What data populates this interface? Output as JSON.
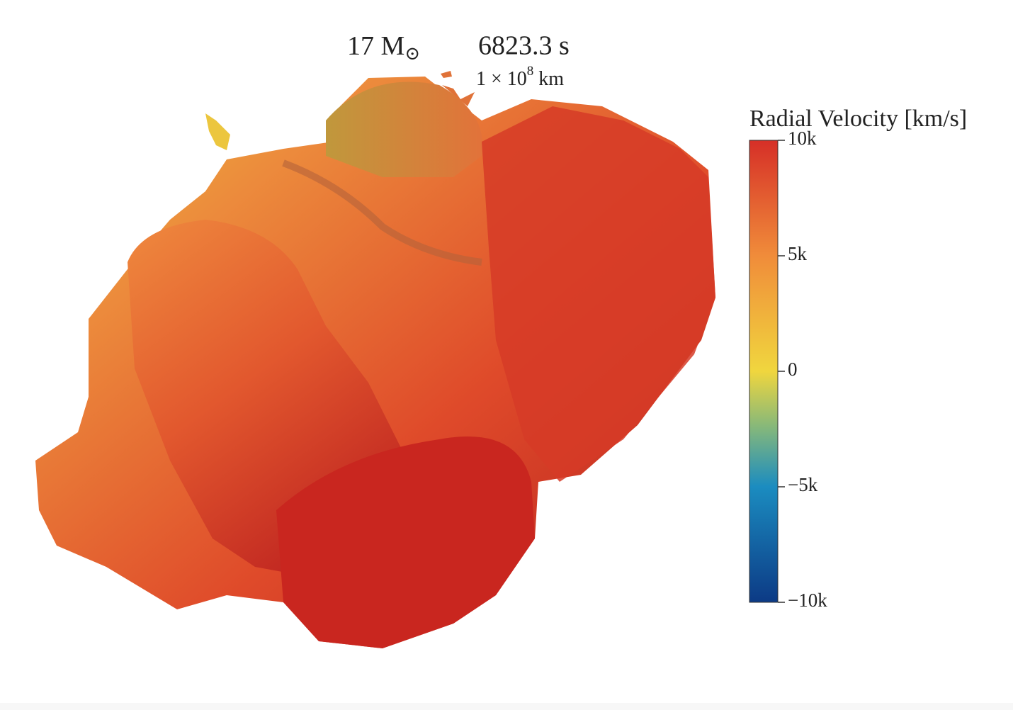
{
  "chart_data": {
    "type": "isosurface",
    "annotations": {
      "mass": {
        "text": "17 M",
        "sub": "⊙"
      },
      "time": "6823.3 s",
      "scale": {
        "text": "1 × 10",
        "sup": "8",
        "unit": " km"
      }
    },
    "colorbar": {
      "title": "Radial Velocity [km/s]",
      "clim": [
        -10000,
        10000
      ],
      "ticks": [
        {
          "value": 10000,
          "label": "10k"
        },
        {
          "value": 5000,
          "label": "5k"
        },
        0,
        {
          "value": -5000,
          "label": "−5k"
        },
        {
          "value": -10000,
          "label": "−10k"
        }
      ]
    }
  }
}
